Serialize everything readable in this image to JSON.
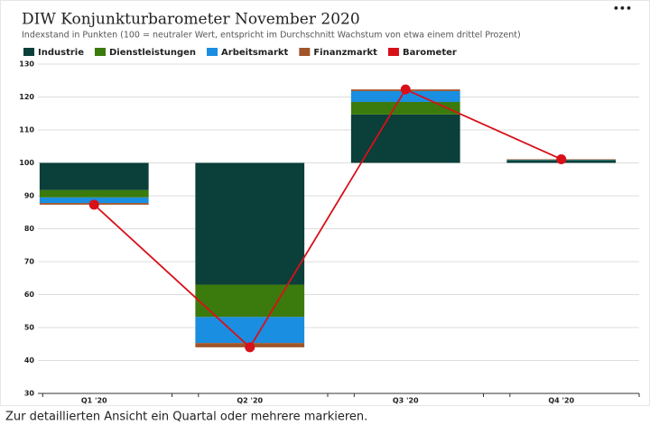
{
  "chart_data": {
    "type": "bar",
    "title": "DIW Konjunkturbarometer November 2020",
    "subtitle": "Indexstand in Punkten (100 = neutraler Wert, entspricht im Durchschnitt Wachstum von etwa einem drittel Prozent)",
    "menu": "•••",
    "footer": "Zur detaillierten Ansicht ein Quartal oder mehrere markieren.",
    "categories": [
      "Q1 '20",
      "Q2 '20",
      "Q3 '20",
      "Q4 '20"
    ],
    "baseline": 100,
    "series": [
      {
        "name": "Industrie",
        "color": "#0b3f39",
        "values": [
          -8.3,
          -37,
          14.7,
          0.8
        ]
      },
      {
        "name": "Dienstleistungen",
        "color": "#3b7a0c",
        "values": [
          -2.2,
          -9.8,
          3.8,
          0.1
        ]
      },
      {
        "name": "Arbeitsmarkt",
        "color": "#1a8ee0",
        "values": [
          -1.7,
          -7.9,
          3.3,
          0.1
        ]
      },
      {
        "name": "Finanzmarkt",
        "color": "#a0552a",
        "values": [
          -0.5,
          -1.3,
          0.5,
          0.1
        ]
      },
      {
        "name": "Barometer",
        "color": "#d8101a",
        "type": "line",
        "values": [
          87.3,
          44.0,
          122.3,
          101.1
        ]
      }
    ],
    "ylim": [
      30,
      130
    ],
    "yticks": [
      30,
      40,
      50,
      60,
      70,
      80,
      90,
      100,
      110,
      120,
      130
    ],
    "grid": true
  }
}
